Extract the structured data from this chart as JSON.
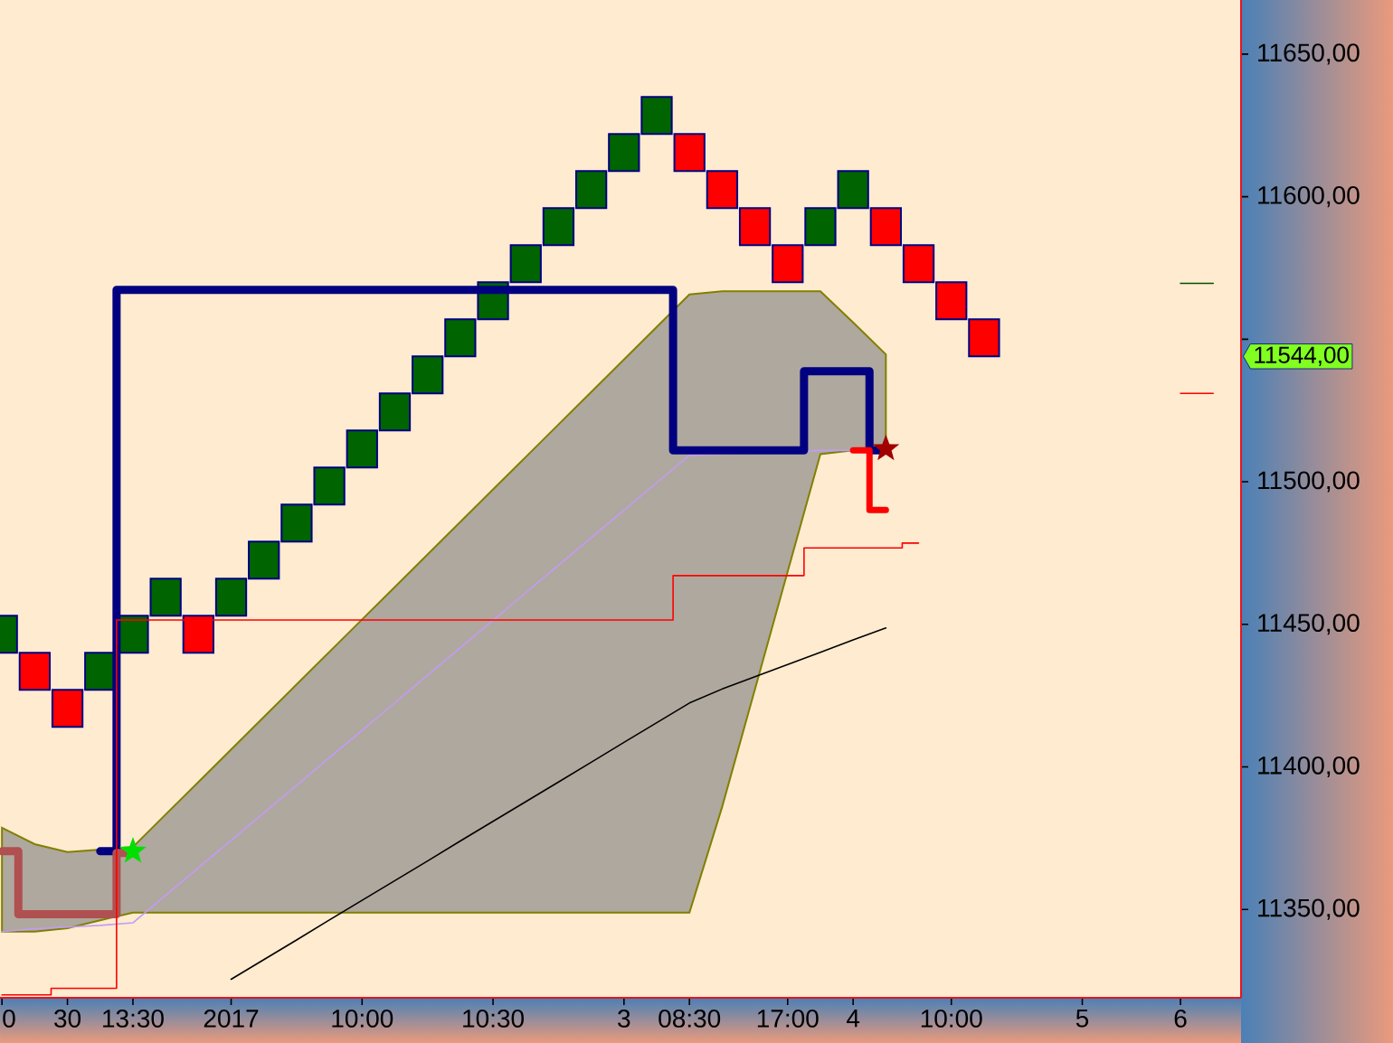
{
  "chart_data": {
    "type": "candlestick",
    "categories": [
      "0",
      null,
      "30",
      null,
      "13:30",
      null,
      null,
      "2017",
      null,
      null,
      null,
      "10:00",
      null,
      null,
      null,
      "10:30",
      null,
      null,
      null,
      "3",
      null,
      "08:30",
      null,
      null,
      "17:00",
      null,
      "4",
      null,
      null,
      "10:00",
      null,
      null,
      null,
      "5",
      null,
      null,
      "6",
      null
    ],
    "ylim": [
      11319,
      11669
    ],
    "yticks": [
      {
        "value": 11350,
        "label": "11350,00"
      },
      {
        "value": 11400,
        "label": "11400,00"
      },
      {
        "value": 11450,
        "label": "11450,00"
      },
      {
        "value": 11500,
        "label": "11500,00"
      },
      {
        "value": 11550,
        "label": null
      },
      {
        "value": 11600,
        "label": "11600,00"
      },
      {
        "value": 11650,
        "label": "11650,00"
      }
    ],
    "series": [
      {
        "type": "line",
        "color": "#c39bf5",
        "values": [
          11342.2,
          11343.2,
          11343.8,
          11344.4,
          11345.3,
          11354.9,
          11364.6,
          11374.2,
          11383.9,
          11393.5,
          11403.2,
          11412.8,
          11422.5,
          11432.1,
          11441.8,
          11451.4,
          11461.1,
          11470.7,
          11480.4,
          11490.0,
          11499.7,
          11509.3,
          null,
          null,
          null,
          11511.0,
          11511.0,
          null,
          null,
          null,
          null,
          null,
          null,
          null,
          null,
          null,
          null,
          null
        ],
        "lower": [
          11342.2,
          11342.2,
          11343.4,
          11346.2,
          11348.9,
          11348.9,
          11348.9,
          11348.9,
          11348.9,
          11348.9,
          11348.9,
          11348.9,
          11348.9,
          11348.9,
          11348.9,
          11348.9,
          11348.9,
          11348.9,
          11348.9,
          11348.9,
          11348.9,
          11348.9,
          11386.0,
          11427.2,
          11468.5,
          11509.7,
          11511.0,
          11511.0,
          null,
          null,
          null,
          null,
          null,
          null,
          null,
          null,
          null,
          null
        ],
        "upper": [
          11378.6,
          11372.9,
          11370.1,
          11371.0,
          11371.9,
          11383.3,
          11394.7,
          11406.1,
          11417.5,
          11428.9,
          11440.3,
          11451.7,
          11463.1,
          11474.5,
          11485.9,
          11497.3,
          11508.7,
          11520.1,
          11531.5,
          11542.9,
          11554.3,
          11565.7,
          11566.8,
          11566.8,
          11566.8,
          11566.8,
          11555.9,
          11544.7,
          null,
          null,
          null,
          null,
          null,
          null,
          null,
          null,
          null,
          null
        ]
      },
      {
        "type": "step",
        "color": "#000080",
        "values": [
          null,
          null,
          null,
          11370.4,
          11567.3,
          11567.3,
          11567.3,
          11567.3,
          11567.3,
          11567.3,
          11567.3,
          11567.3,
          11567.3,
          11567.3,
          11567.3,
          11567.3,
          11567.3,
          11567.3,
          11567.3,
          11567.3,
          11567.3,
          11511.0,
          11511.0,
          11511.0,
          11511.0,
          11538.8,
          11538.8,
          11511.0,
          null,
          null,
          null,
          null,
          null,
          null,
          null,
          null,
          null,
          null
        ]
      },
      {
        "type": "step",
        "color": "#b05050",
        "values": [
          11370.4,
          11348.3,
          11348.3,
          11348.3,
          11369.8,
          null,
          null,
          null,
          null,
          null,
          null,
          null,
          null,
          null,
          null,
          null,
          null,
          null,
          null,
          null,
          null,
          null,
          null,
          null,
          null,
          null,
          null,
          null,
          null,
          null,
          null,
          null,
          null,
          null,
          null,
          null,
          null,
          null
        ]
      },
      {
        "type": "step",
        "color": "#ff0000",
        "values": [
          null,
          null,
          null,
          null,
          null,
          null,
          null,
          null,
          null,
          null,
          null,
          null,
          null,
          null,
          null,
          null,
          null,
          null,
          null,
          null,
          null,
          null,
          null,
          null,
          null,
          null,
          11511.0,
          11490.1,
          null,
          null,
          null,
          null,
          null,
          null,
          null,
          null,
          null,
          null
        ]
      },
      {
        "type": "step",
        "color": "#ff0000",
        "values": [
          11320.0,
          11320.0,
          11322.3,
          11322.3,
          11451.5,
          11451.5,
          11451.5,
          11451.5,
          11451.5,
          11451.5,
          11451.5,
          11451.5,
          11451.5,
          11451.5,
          11451.5,
          11451.5,
          11451.5,
          11451.5,
          11451.5,
          11451.5,
          11451.5,
          11467.1,
          11467.1,
          11467.1,
          11467.1,
          11476.8,
          11476.8,
          11476.8,
          11478.5,
          null,
          null,
          null,
          null,
          null,
          null,
          null,
          null,
          null
        ]
      },
      {
        "type": "line",
        "color": "#000000",
        "values": [
          null,
          null,
          null,
          null,
          null,
          null,
          null,
          11325.5,
          11332.4,
          11339.3,
          11346.3,
          11353.2,
          11360.1,
          11367.0,
          11374.0,
          11380.9,
          11387.8,
          11394.7,
          11401.6,
          11408.6,
          11415.5,
          11422.4,
          11427.3,
          11431.6,
          11435.9,
          11440.2,
          11444.5,
          11448.7,
          null,
          null,
          null,
          null,
          null,
          null,
          null,
          null,
          null,
          null
        ]
      },
      {
        "type": "line",
        "color": "#005000",
        "values": [
          null,
          null,
          null,
          null,
          null,
          null,
          null,
          null,
          null,
          null,
          null,
          null,
          null,
          null,
          null,
          null,
          null,
          null,
          null,
          null,
          null,
          null,
          null,
          null,
          null,
          null,
          null,
          null,
          null,
          null,
          null,
          null,
          null,
          null,
          null,
          null,
          11569.6,
          11569.6
        ]
      },
      {
        "type": "line",
        "color": "#ff0000",
        "values": [
          null,
          null,
          null,
          null,
          null,
          null,
          null,
          null,
          null,
          null,
          null,
          null,
          null,
          null,
          null,
          null,
          null,
          null,
          null,
          null,
          null,
          null,
          null,
          null,
          null,
          null,
          null,
          null,
          null,
          null,
          null,
          null,
          null,
          null,
          null,
          null,
          11531.0,
          11531.0
        ]
      },
      {
        "type": "scatter",
        "color": "#00e000",
        "marker": "star",
        "values": [
          null,
          null,
          null,
          null,
          11370.4,
          null,
          null,
          null,
          null,
          null,
          null,
          null,
          null,
          null,
          null,
          null,
          null,
          null,
          null,
          null,
          null,
          null,
          null,
          null,
          null,
          null,
          null,
          null,
          null,
          null,
          null,
          null,
          null,
          null,
          null,
          null,
          null,
          null
        ]
      },
      {
        "type": "scatter",
        "color": "#a00000",
        "marker": "star",
        "values": [
          null,
          null,
          null,
          null,
          null,
          null,
          null,
          null,
          null,
          null,
          null,
          null,
          null,
          null,
          null,
          null,
          null,
          null,
          null,
          null,
          null,
          null,
          null,
          null,
          null,
          null,
          null,
          11511.6,
          null,
          null,
          null,
          null,
          null,
          null,
          null,
          null,
          null,
          null
        ]
      },
      {
        "color": "#000080",
        "ohlc": [
          [
            11440,
            11453,
            11440,
            11453
          ],
          [
            11440,
            11440,
            11427,
            11427
          ],
          [
            11427,
            11427,
            11414,
            11414
          ],
          [
            11427,
            11440,
            11427,
            11440
          ],
          [
            11440,
            11453,
            11440,
            11453
          ],
          [
            11453,
            11466,
            11453,
            11466
          ],
          [
            11453,
            11453,
            11440,
            11440
          ],
          [
            11453,
            11466,
            11453,
            11466
          ],
          [
            11466,
            11479,
            11466,
            11479
          ],
          [
            11479,
            11492,
            11479,
            11492
          ],
          [
            11492,
            11505,
            11492,
            11505
          ],
          [
            11505,
            11518,
            11505,
            11518
          ],
          [
            11518,
            11531,
            11518,
            11531
          ],
          [
            11531,
            11544,
            11531,
            11544
          ],
          [
            11544,
            11557,
            11544,
            11557
          ],
          [
            11557,
            11570,
            11557,
            11570
          ],
          [
            11570,
            11583,
            11570,
            11583
          ],
          [
            11583,
            11596,
            11583,
            11596
          ],
          [
            11596,
            11609,
            11596,
            11609
          ],
          [
            11609,
            11622,
            11609,
            11622
          ],
          [
            11622,
            11635,
            11622,
            11635
          ],
          [
            11622,
            11622,
            11609,
            11609
          ],
          [
            11609,
            11609,
            11596,
            11596
          ],
          [
            11596,
            11596,
            11583,
            11583
          ],
          [
            11583,
            11583,
            11570,
            11570
          ],
          [
            11583,
            11596,
            11583,
            11596
          ],
          [
            11596,
            11609,
            11596,
            11609
          ],
          [
            11596,
            11596,
            11583,
            11583
          ],
          [
            11583,
            11583,
            11570,
            11570
          ],
          [
            11570,
            11570,
            11557,
            11557
          ],
          [
            11557,
            11557,
            11544,
            11544
          ],
          null,
          null,
          null,
          null,
          null,
          null,
          null
        ],
        "colors": [
          "#006400",
          "#ff0000",
          "#ff0000",
          "#006400",
          "#006400",
          "#006400",
          "#ff0000",
          "#006400",
          "#006400",
          "#006400",
          "#006400",
          "#006400",
          "#006400",
          "#006400",
          "#006400",
          "#006400",
          "#006400",
          "#006400",
          "#006400",
          "#006400",
          "#006400",
          "#ff0000",
          "#ff0000",
          "#ff0000",
          "#ff0000",
          "#006400",
          "#006400",
          "#ff0000",
          "#ff0000",
          "#ff0000",
          "#ff0000",
          null,
          null,
          null,
          null,
          null,
          null,
          null
        ]
      }
    ],
    "annotations": [
      "11544,00"
    ]
  }
}
